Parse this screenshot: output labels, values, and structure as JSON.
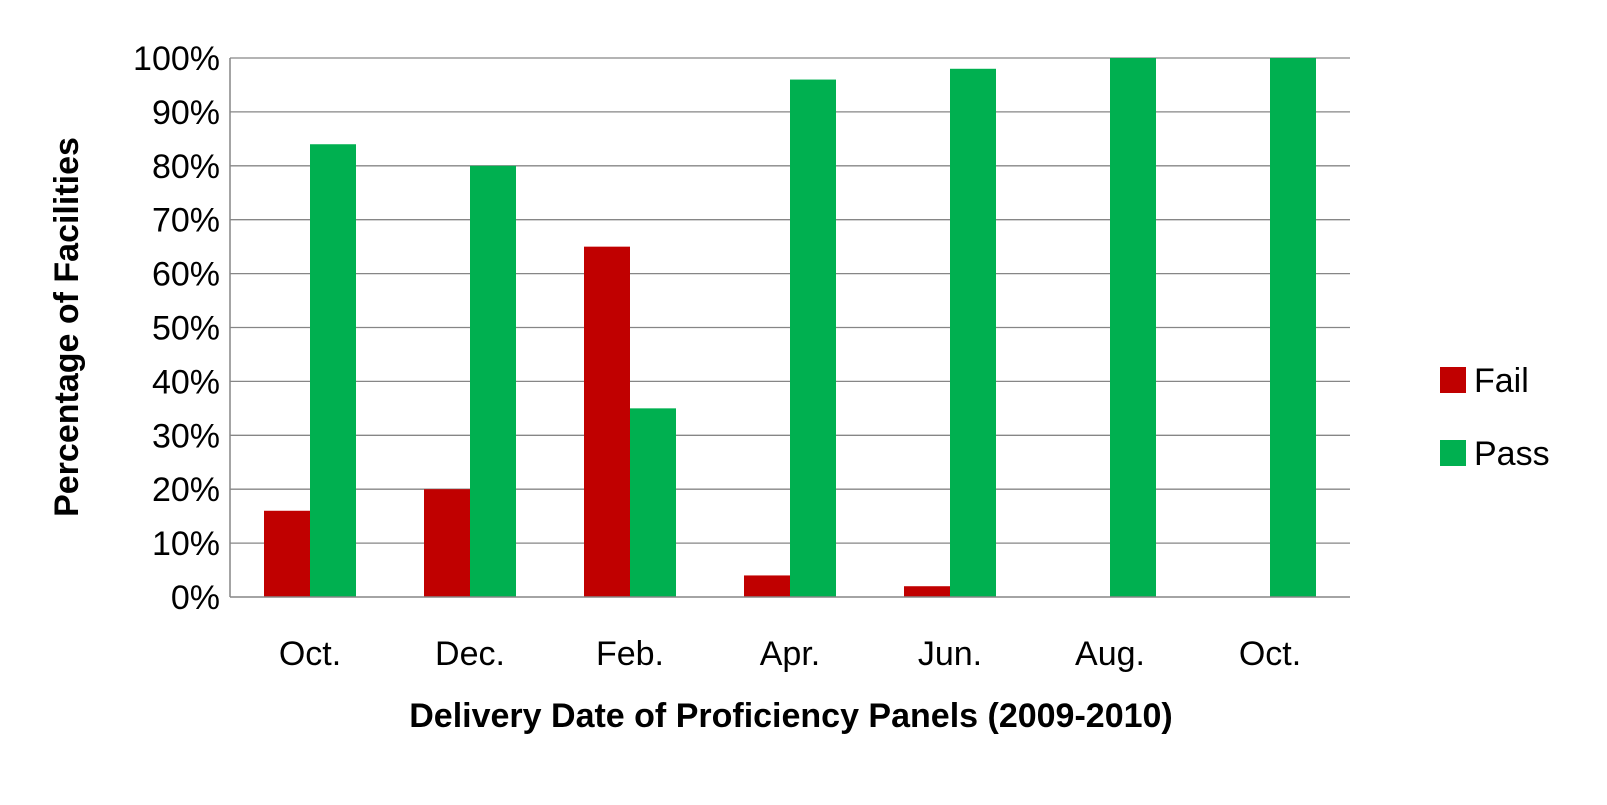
{
  "chart_data": {
    "type": "bar",
    "title": "",
    "xlabel": "Delivery Date of Proficiency Panels (2009-2010)",
    "ylabel": "Percentage of Facilities",
    "categories": [
      "Oct.",
      "Dec.",
      "Feb.",
      "Apr.",
      "Jun.",
      "Aug.",
      "Oct."
    ],
    "series": [
      {
        "name": "Fail",
        "color": "#C00000",
        "values": [
          16,
          20,
          65,
          4,
          2,
          0,
          0
        ]
      },
      {
        "name": "Pass",
        "color": "#00B050",
        "values": [
          84,
          80,
          35,
          96,
          98,
          100,
          100
        ]
      }
    ],
    "ylim": [
      0,
      100
    ],
    "yticks": [
      "0%",
      "10%",
      "20%",
      "30%",
      "40%",
      "50%",
      "60%",
      "70%",
      "80%",
      "90%",
      "100%"
    ],
    "grid": true,
    "legend_position": "right"
  }
}
